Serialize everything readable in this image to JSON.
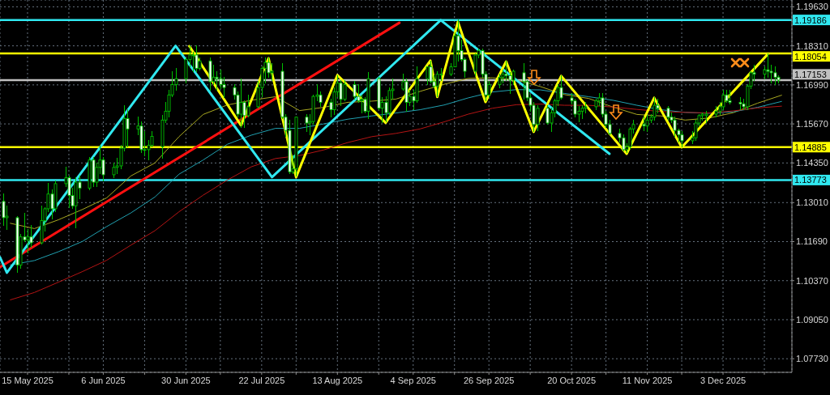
{
  "chart_data": {
    "type": "candlestick",
    "x": [
      "2025-05-08",
      "2025-05-09",
      "2025-05-12",
      "2025-05-13",
      "2025-05-14",
      "2025-05-15",
      "2025-05-16",
      "2025-05-19",
      "2025-05-20",
      "2025-05-21",
      "2025-05-22",
      "2025-05-23",
      "2025-05-26",
      "2025-05-27",
      "2025-05-28",
      "2025-05-29",
      "2025-05-30",
      "2025-06-02",
      "2025-06-03",
      "2025-06-04",
      "2025-06-05",
      "2025-06-06",
      "2025-06-09",
      "2025-06-10",
      "2025-06-11",
      "2025-06-12",
      "2025-06-13",
      "2025-06-16",
      "2025-06-17",
      "2025-06-18",
      "2025-06-19",
      "2025-06-20",
      "2025-06-23",
      "2025-06-24",
      "2025-06-25",
      "2025-06-26",
      "2025-06-27",
      "2025-06-30",
      "2025-07-01",
      "2025-07-02",
      "2025-07-03",
      "2025-07-04",
      "2025-07-07",
      "2025-07-08",
      "2025-07-09",
      "2025-07-10",
      "2025-07-11",
      "2025-07-14",
      "2025-07-15",
      "2025-07-16",
      "2025-07-17",
      "2025-07-18",
      "2025-07-21",
      "2025-07-22",
      "2025-07-23",
      "2025-07-24",
      "2025-07-25",
      "2025-07-28",
      "2025-07-29",
      "2025-07-30",
      "2025-07-31",
      "2025-08-01",
      "2025-08-04",
      "2025-08-05",
      "2025-08-06",
      "2025-08-07",
      "2025-08-08",
      "2025-08-11",
      "2025-08-12",
      "2025-08-13",
      "2025-08-14",
      "2025-08-15",
      "2025-08-18",
      "2025-08-19",
      "2025-08-20",
      "2025-08-21",
      "2025-08-22",
      "2025-08-25",
      "2025-08-26",
      "2025-08-27",
      "2025-08-28",
      "2025-08-29",
      "2025-09-01",
      "2025-09-02",
      "2025-09-03",
      "2025-09-04",
      "2025-09-05",
      "2025-09-08",
      "2025-09-09",
      "2025-09-10",
      "2025-09-11",
      "2025-09-12",
      "2025-09-15",
      "2025-09-16",
      "2025-09-17",
      "2025-09-18",
      "2025-09-19",
      "2025-09-22",
      "2025-09-23",
      "2025-09-24",
      "2025-09-25",
      "2025-09-26",
      "2025-09-29",
      "2025-09-30",
      "2025-10-01",
      "2025-10-02",
      "2025-10-03",
      "2025-10-06",
      "2025-10-07",
      "2025-10-08",
      "2025-10-09",
      "2025-10-10",
      "2025-10-13",
      "2025-10-14",
      "2025-10-15",
      "2025-10-16",
      "2025-10-17",
      "2025-10-20",
      "2025-10-21",
      "2025-10-22",
      "2025-10-23",
      "2025-10-24",
      "2025-10-27",
      "2025-10-28",
      "2025-10-29",
      "2025-10-30",
      "2025-10-31",
      "2025-11-03",
      "2025-11-04",
      "2025-11-05",
      "2025-11-06",
      "2025-11-07",
      "2025-11-10",
      "2025-11-11",
      "2025-11-12",
      "2025-11-13",
      "2025-11-14",
      "2025-11-17",
      "2025-11-18",
      "2025-11-19",
      "2025-11-20",
      "2025-11-21",
      "2025-11-24",
      "2025-11-25",
      "2025-11-26",
      "2025-11-27",
      "2025-11-28",
      "2025-12-01",
      "2025-12-02",
      "2025-12-03",
      "2025-12-04",
      "2025-12-05",
      "2025-12-08",
      "2025-12-09",
      "2025-12-10",
      "2025-12-11",
      "2025-12-12",
      "2025-12-15",
      "2025-12-16",
      "2025-12-17",
      "2025-12-18",
      "2025-12-19"
    ],
    "ohlc": [
      [
        1.1305,
        1.133,
        1.1225,
        1.125
      ],
      [
        1.125,
        1.129,
        1.121,
        1.1255
      ],
      [
        1.125,
        1.1255,
        1.1065,
        1.109
      ],
      [
        1.109,
        1.1195,
        1.108,
        1.1185
      ],
      [
        1.1185,
        1.1265,
        1.117,
        1.1175
      ],
      [
        1.1175,
        1.121,
        1.113,
        1.1185
      ],
      [
        1.1185,
        1.1225,
        1.115,
        1.1165
      ],
      [
        1.1165,
        1.129,
        1.116,
        1.124
      ],
      [
        1.124,
        1.1285,
        1.1205,
        1.128
      ],
      [
        1.128,
        1.1365,
        1.127,
        1.133
      ],
      [
        1.133,
        1.1345,
        1.1245,
        1.128
      ],
      [
        1.128,
        1.1375,
        1.127,
        1.1365
      ],
      [
        1.1365,
        1.142,
        1.1355,
        1.1385
      ],
      [
        1.1385,
        1.139,
        1.1285,
        1.1325
      ],
      [
        1.1325,
        1.135,
        1.128,
        1.129
      ],
      [
        1.129,
        1.1385,
        1.1215,
        1.137
      ],
      [
        1.137,
        1.139,
        1.1315,
        1.135
      ],
      [
        1.135,
        1.1455,
        1.1345,
        1.1445
      ],
      [
        1.1445,
        1.1455,
        1.1355,
        1.137
      ],
      [
        1.137,
        1.1435,
        1.1355,
        1.142
      ],
      [
        1.142,
        1.1495,
        1.14,
        1.1445
      ],
      [
        1.1445,
        1.1455,
        1.1375,
        1.1395
      ],
      [
        1.1395,
        1.1435,
        1.1385,
        1.142
      ],
      [
        1.142,
        1.145,
        1.14,
        1.1425
      ],
      [
        1.1425,
        1.1495,
        1.1415,
        1.1485
      ],
      [
        1.1485,
        1.163,
        1.1475,
        1.1585
      ],
      [
        1.1585,
        1.1615,
        1.149,
        1.155
      ],
      [
        1.155,
        1.159,
        1.153,
        1.156
      ],
      [
        1.156,
        1.1575,
        1.147,
        1.148
      ],
      [
        1.148,
        1.154,
        1.146,
        1.148
      ],
      [
        1.148,
        1.151,
        1.1445,
        1.1495
      ],
      [
        1.1495,
        1.154,
        1.149,
        1.1525
      ],
      [
        1.149,
        1.1595,
        1.145,
        1.158
      ],
      [
        1.158,
        1.164,
        1.157,
        1.161
      ],
      [
        1.161,
        1.168,
        1.159,
        1.1665
      ],
      [
        1.1665,
        1.1745,
        1.166,
        1.17
      ],
      [
        1.17,
        1.1755,
        1.168,
        1.172
      ],
      [
        1.172,
        1.179,
        1.1705,
        1.1785
      ],
      [
        1.1785,
        1.183,
        1.176,
        1.18
      ],
      [
        1.18,
        1.181,
        1.1745,
        1.18
      ],
      [
        1.18,
        1.183,
        1.1745,
        1.1755
      ],
      [
        1.1755,
        1.179,
        1.175,
        1.178
      ],
      [
        1.178,
        1.179,
        1.168,
        1.171
      ],
      [
        1.171,
        1.1765,
        1.17,
        1.1725
      ],
      [
        1.1725,
        1.1745,
        1.168,
        1.172
      ],
      [
        1.172,
        1.175,
        1.1685,
        1.17
      ],
      [
        1.17,
        1.1725,
        1.1655,
        1.169
      ],
      [
        1.169,
        1.17,
        1.165,
        1.1665
      ],
      [
        1.1665,
        1.1675,
        1.159,
        1.16
      ],
      [
        1.16,
        1.172,
        1.1555,
        1.164
      ],
      [
        1.164,
        1.1645,
        1.1555,
        1.1595
      ],
      [
        1.1595,
        1.1665,
        1.159,
        1.1625
      ],
      [
        1.1625,
        1.171,
        1.162,
        1.169
      ],
      [
        1.169,
        1.176,
        1.166,
        1.1755
      ],
      [
        1.1755,
        1.179,
        1.1705,
        1.1775
      ],
      [
        1.1775,
        1.179,
        1.1725,
        1.174
      ],
      [
        1.174,
        1.177,
        1.1715,
        1.1745
      ],
      [
        1.1745,
        1.177,
        1.1585,
        1.159
      ],
      [
        1.159,
        1.16,
        1.1525,
        1.1545
      ],
      [
        1.1545,
        1.158,
        1.14,
        1.1405
      ],
      [
        1.1405,
        1.146,
        1.14,
        1.1415
      ],
      [
        1.1415,
        1.159,
        1.139,
        1.159
      ],
      [
        1.159,
        1.16,
        1.154,
        1.157
      ],
      [
        1.157,
        1.16,
        1.153,
        1.1575
      ],
      [
        1.1575,
        1.1665,
        1.1565,
        1.166
      ],
      [
        1.166,
        1.17,
        1.1645,
        1.1665
      ],
      [
        1.1665,
        1.1675,
        1.1625,
        1.164
      ],
      [
        1.164,
        1.165,
        1.159,
        1.1615
      ],
      [
        1.1615,
        1.169,
        1.16,
        1.1675
      ],
      [
        1.1675,
        1.173,
        1.166,
        1.1705
      ],
      [
        1.1705,
        1.1715,
        1.163,
        1.165
      ],
      [
        1.165,
        1.1715,
        1.1645,
        1.17
      ],
      [
        1.17,
        1.171,
        1.165,
        1.166
      ],
      [
        1.166,
        1.17,
        1.164,
        1.1645
      ],
      [
        1.1645,
        1.1665,
        1.1605,
        1.165
      ],
      [
        1.165,
        1.1655,
        1.1605,
        1.161
      ],
      [
        1.161,
        1.174,
        1.1585,
        1.172
      ],
      [
        1.172,
        1.1725,
        1.1615,
        1.162
      ],
      [
        1.162,
        1.1655,
        1.157,
        1.164
      ],
      [
        1.164,
        1.166,
        1.1575,
        1.1605
      ],
      [
        1.1605,
        1.169,
        1.1595,
        1.168
      ],
      [
        1.168,
        1.172,
        1.165,
        1.1685
      ],
      [
        1.1685,
        1.1735,
        1.168,
        1.171
      ],
      [
        1.171,
        1.172,
        1.161,
        1.164
      ],
      [
        1.164,
        1.168,
        1.163,
        1.166
      ],
      [
        1.166,
        1.168,
        1.1615,
        1.1645
      ],
      [
        1.1645,
        1.176,
        1.164,
        1.172
      ],
      [
        1.172,
        1.176,
        1.17,
        1.176
      ],
      [
        1.176,
        1.178,
        1.1705,
        1.171
      ],
      [
        1.171,
        1.173,
        1.169,
        1.1695
      ],
      [
        1.1695,
        1.1745,
        1.166,
        1.1735
      ],
      [
        1.1735,
        1.1755,
        1.1715,
        1.1735
      ],
      [
        1.1735,
        1.177,
        1.173,
        1.176
      ],
      [
        1.176,
        1.1875,
        1.176,
        1.1865
      ],
      [
        1.1865,
        1.1918,
        1.178,
        1.1815
      ],
      [
        1.1815,
        1.185,
        1.178,
        1.1785
      ],
      [
        1.1785,
        1.179,
        1.1725,
        1.1745
      ],
      [
        1.1745,
        1.1805,
        1.173,
        1.18
      ],
      [
        1.18,
        1.182,
        1.179,
        1.1815
      ],
      [
        1.1815,
        1.182,
        1.1725,
        1.1735
      ],
      [
        1.1735,
        1.1745,
        1.1645,
        1.1665
      ],
      [
        1.1665,
        1.171,
        1.1655,
        1.17
      ],
      [
        1.17,
        1.1735,
        1.169,
        1.1725
      ],
      [
        1.1725,
        1.175,
        1.1705,
        1.1735
      ],
      [
        1.1735,
        1.178,
        1.1715,
        1.173
      ],
      [
        1.173,
        1.174,
        1.167,
        1.1715
      ],
      [
        1.1715,
        1.175,
        1.17,
        1.1745
      ],
      [
        1.174,
        1.177,
        1.165,
        1.171
      ],
      [
        1.171,
        1.1715,
        1.1645,
        1.1655
      ],
      [
        1.1655,
        1.1665,
        1.161,
        1.163
      ],
      [
        1.163,
        1.164,
        1.154,
        1.1565
      ],
      [
        1.1565,
        1.163,
        1.1545,
        1.162
      ],
      [
        1.162,
        1.163,
        1.1565,
        1.157
      ],
      [
        1.157,
        1.162,
        1.154,
        1.1605
      ],
      [
        1.1605,
        1.165,
        1.159,
        1.1645
      ],
      [
        1.1645,
        1.17,
        1.163,
        1.169
      ],
      [
        1.169,
        1.173,
        1.165,
        1.1655
      ],
      [
        1.1655,
        1.167,
        1.1635,
        1.1645
      ],
      [
        1.1645,
        1.165,
        1.159,
        1.16
      ],
      [
        1.16,
        1.1625,
        1.1575,
        1.161
      ],
      [
        1.161,
        1.163,
        1.1585,
        1.162
      ],
      [
        1.162,
        1.164,
        1.1605,
        1.1625
      ],
      [
        1.1625,
        1.165,
        1.1615,
        1.1645
      ],
      [
        1.1645,
        1.167,
        1.163,
        1.1655
      ],
      [
        1.1655,
        1.167,
        1.159,
        1.16
      ],
      [
        1.16,
        1.161,
        1.1555,
        1.1565
      ],
      [
        1.1565,
        1.158,
        1.153,
        1.1535
      ],
      [
        1.1535,
        1.155,
        1.1505,
        1.152
      ],
      [
        1.152,
        1.153,
        1.1475,
        1.148
      ],
      [
        1.148,
        1.15,
        1.147,
        1.149
      ],
      [
        1.149,
        1.1555,
        1.1485,
        1.155
      ],
      [
        1.155,
        1.158,
        1.1535,
        1.1565
      ],
      [
        1.1565,
        1.159,
        1.1545,
        1.156
      ],
      [
        1.156,
        1.1595,
        1.154,
        1.158
      ],
      [
        1.158,
        1.16,
        1.157,
        1.159
      ],
      [
        1.159,
        1.1655,
        1.158,
        1.163
      ],
      [
        1.163,
        1.165,
        1.1605,
        1.162
      ],
      [
        1.162,
        1.1625,
        1.158,
        1.159
      ],
      [
        1.159,
        1.1605,
        1.157,
        1.158
      ],
      [
        1.158,
        1.159,
        1.1525,
        1.1545
      ],
      [
        1.1545,
        1.155,
        1.1505,
        1.153
      ],
      [
        1.153,
        1.154,
        1.149,
        1.151
      ],
      [
        1.151,
        1.154,
        1.15,
        1.152
      ],
      [
        1.152,
        1.158,
        1.151,
        1.157
      ],
      [
        1.157,
        1.16,
        1.156,
        1.1595
      ],
      [
        1.1595,
        1.1605,
        1.158,
        1.16
      ],
      [
        1.1595,
        1.161,
        1.157,
        1.16
      ],
      [
        1.16,
        1.1625,
        1.159,
        1.161
      ],
      [
        1.161,
        1.164,
        1.16,
        1.1625
      ],
      [
        1.1625,
        1.168,
        1.1615,
        1.1665
      ],
      [
        1.1665,
        1.168,
        1.164,
        1.1645
      ],
      [
        1.1645,
        1.168,
        1.1635,
        1.164
      ],
      [
        1.164,
        1.1655,
        1.1615,
        1.1635
      ],
      [
        1.1635,
        1.165,
        1.1615,
        1.1625
      ],
      [
        1.1625,
        1.17,
        1.1615,
        1.1695
      ],
      [
        1.1695,
        1.1745,
        1.1685,
        1.174
      ],
      [
        1.174,
        1.1765,
        1.1715,
        1.1735
      ],
      [
        1.1735,
        1.176,
        1.172,
        1.175
      ],
      [
        1.175,
        1.1803,
        1.1725,
        1.1745
      ],
      [
        1.1745,
        1.1765,
        1.1705,
        1.174
      ],
      [
        1.174,
        1.176,
        1.17,
        1.1725
      ],
      [
        1.1725,
        1.173,
        1.1705,
        1.1715
      ]
    ],
    "color": "#00c000",
    "series": [
      {
        "type": "line",
        "color": "#a8a820",
        "x": [
          "2025-05-10",
          "2025-05-17",
          "2025-05-24",
          "2025-05-31",
          "2025-06-07",
          "2025-06-14",
          "2025-06-21",
          "2025-06-28",
          "2025-07-05",
          "2025-07-12",
          "2025-07-19",
          "2025-07-26",
          "2025-08-02",
          "2025-08-09",
          "2025-08-16",
          "2025-08-23",
          "2025-08-30",
          "2025-09-06",
          "2025-09-13",
          "2025-09-20",
          "2025-09-27",
          "2025-10-04",
          "2025-10-11",
          "2025-10-18",
          "2025-10-25",
          "2025-11-01",
          "2025-11-08",
          "2025-11-15",
          "2025-11-22",
          "2025-11-29",
          "2025-12-06",
          "2025-12-13",
          "2025-12-20"
        ],
        "values": [
          1.1231,
          1.1213,
          1.1243,
          1.1278,
          1.1317,
          1.1391,
          1.1435,
          1.1524,
          1.1599,
          1.1631,
          1.1647,
          1.1659,
          1.1612,
          1.1623,
          1.164,
          1.1644,
          1.1651,
          1.1677,
          1.1701,
          1.1721,
          1.1723,
          1.1716,
          1.1693,
          1.1666,
          1.1653,
          1.1624,
          1.1599,
          1.1594,
          1.158,
          1.1587,
          1.1605,
          1.1637,
          1.1664
        ]
      },
      {
        "type": "line",
        "color": "#20a0b0",
        "x": [
          "2025-05-10",
          "2025-05-17",
          "2025-05-24",
          "2025-05-31",
          "2025-06-07",
          "2025-06-14",
          "2025-06-21",
          "2025-06-28",
          "2025-07-05",
          "2025-07-12",
          "2025-07-19",
          "2025-07-26",
          "2025-08-02",
          "2025-08-09",
          "2025-08-16",
          "2025-08-23",
          "2025-08-30",
          "2025-09-06",
          "2025-09-13",
          "2025-09-20",
          "2025-09-27",
          "2025-10-04",
          "2025-10-11",
          "2025-10-18",
          "2025-10-25",
          "2025-11-01",
          "2025-11-08",
          "2025-11-15",
          "2025-11-22",
          "2025-11-29",
          "2025-12-06",
          "2025-12-13",
          "2025-12-20"
        ],
        "values": [
          1.109,
          1.1105,
          1.1135,
          1.117,
          1.122,
          1.1266,
          1.132,
          1.1397,
          1.1445,
          1.1498,
          1.1529,
          1.1552,
          1.1552,
          1.1567,
          1.1583,
          1.1594,
          1.1604,
          1.1615,
          1.1631,
          1.1655,
          1.1675,
          1.1683,
          1.1682,
          1.167,
          1.1659,
          1.1647,
          1.163,
          1.1615,
          1.1606,
          1.1603,
          1.1608,
          1.1623,
          1.1643
        ]
      },
      {
        "type": "line",
        "color": "#b41414",
        "x": [
          "2025-05-10",
          "2025-05-17",
          "2025-05-24",
          "2025-05-31",
          "2025-06-07",
          "2025-06-14",
          "2025-06-21",
          "2025-06-28",
          "2025-07-05",
          "2025-07-12",
          "2025-07-19",
          "2025-07-26",
          "2025-08-02",
          "2025-08-09",
          "2025-08-16",
          "2025-08-23",
          "2025-08-30",
          "2025-09-06",
          "2025-09-13",
          "2025-09-20",
          "2025-09-27",
          "2025-10-04",
          "2025-10-11",
          "2025-10-18",
          "2025-10-25",
          "2025-11-01",
          "2025-11-08",
          "2025-11-15",
          "2025-11-22",
          "2025-11-29",
          "2025-12-06",
          "2025-12-13",
          "2025-12-20"
        ],
        "values": [
          1.0972,
          1.0997,
          1.1032,
          1.1068,
          1.1106,
          1.1157,
          1.1206,
          1.127,
          1.1326,
          1.1377,
          1.1422,
          1.145,
          1.146,
          1.1479,
          1.1504,
          1.1524,
          1.1535,
          1.155,
          1.1574,
          1.16,
          1.162,
          1.1632,
          1.1634,
          1.163,
          1.163,
          1.1624,
          1.1616,
          1.1609,
          1.1606,
          1.1604,
          1.1611,
          1.1621,
          1.1627
        ]
      },
      {
        "type": "line",
        "color": "#ff1010",
        "x": [
          "2025-05-07",
          "2025-08-31"
        ],
        "values": [
          1.1083,
          1.1909
        ]
      },
      {
        "type": "line",
        "color": "#30e8f0",
        "x": [
          "2025-05-07",
          "2025-05-09",
          "2025-06-27",
          "2025-07-25",
          "2025-09-12",
          "2025-10-31"
        ],
        "values": [
          1.1116,
          1.1064,
          1.1831,
          1.1387,
          1.1918,
          1.1466
        ]
      },
      {
        "type": "line",
        "color": "#ffff00",
        "x": [
          "2025-07-01",
          "2025-07-16",
          "2025-07-24",
          "2025-08-01",
          "2025-08-13",
          "2025-08-27",
          "2025-09-09",
          "2025-09-11",
          "2025-09-17",
          "2025-09-25",
          "2025-10-01",
          "2025-10-09",
          "2025-10-17",
          "2025-11-05",
          "2025-11-13",
          "2025-11-21",
          "2025-12-16"
        ],
        "values": [
          1.183,
          1.1562,
          1.1789,
          1.1387,
          1.1732,
          1.1571,
          1.1781,
          1.1658,
          1.1912,
          1.1641,
          1.1778,
          1.154,
          1.1729,
          1.1466,
          1.1655,
          1.1488,
          1.1803
        ]
      }
    ],
    "xlim": [
      "2025-05-07",
      "2025-12-23"
    ],
    "xticks": [
      {
        "value": "2025-05-15",
        "label": "15 May 2025"
      },
      {
        "value": "2025-05-27",
        "label": null
      },
      {
        "value": "2025-06-06",
        "label": "6 Jun 2025"
      },
      {
        "value": "2025-06-18",
        "label": null
      },
      {
        "value": "2025-06-30",
        "label": "30 Jun 2025"
      },
      {
        "value": "2025-07-10",
        "label": null
      },
      {
        "value": "2025-07-22",
        "label": "22 Jul 2025"
      },
      {
        "value": "2025-08-01",
        "label": null
      },
      {
        "value": "2025-08-13",
        "label": "13 Aug 2025"
      },
      {
        "value": "2025-08-25",
        "label": null
      },
      {
        "value": "2025-09-04",
        "label": "4 Sep 2025"
      },
      {
        "value": "2025-09-16",
        "label": null
      },
      {
        "value": "2025-09-26",
        "label": "26 Sep 2025"
      },
      {
        "value": "2025-10-08",
        "label": null
      },
      {
        "value": "2025-10-20",
        "label": "20 Oct 2025"
      },
      {
        "value": "2025-10-30",
        "label": null
      },
      {
        "value": "2025-11-11",
        "label": "11 Nov 2025"
      },
      {
        "value": "2025-11-21",
        "label": null
      },
      {
        "value": "2025-12-03",
        "label": "3 Dec 2025"
      },
      {
        "value": "2025-12-15",
        "label": null
      }
    ],
    "ylim": [
      1.0727,
      1.1986
    ],
    "yticks": [
      {
        "value": 1.0773,
        "label": "1.07730"
      },
      {
        "value": 1.0905,
        "label": "1.09050"
      },
      {
        "value": 1.1037,
        "label": "1.10370"
      },
      {
        "value": 1.1169,
        "label": "1.11690"
      },
      {
        "value": 1.1301,
        "label": "1.13010"
      },
      {
        "value": 1.1435,
        "label": "1.14350"
      },
      {
        "value": 1.1567,
        "label": "1.15670"
      },
      {
        "value": 1.1699,
        "label": "1.16990"
      },
      {
        "value": 1.1831,
        "label": "1.18310"
      },
      {
        "value": 1.1963,
        "label": "1.19630"
      }
    ],
    "ref_lines": [
      {
        "axis": "y",
        "value": 1.19186,
        "label": "1.19186",
        "color": "#30e8f0"
      },
      {
        "axis": "y",
        "value": 1.18054,
        "label": "1.18054",
        "color": "#ffff00"
      },
      {
        "axis": "y",
        "value": 1.17153,
        "label": "1.17153",
        "color": "#c0c0c0"
      },
      {
        "axis": "y",
        "value": 1.14885,
        "label": "1.14885",
        "color": "#ffff00"
      },
      {
        "axis": "y",
        "value": 1.13773,
        "label": "1.13773",
        "color": "#30e8f0"
      }
    ],
    "grid": true
  }
}
